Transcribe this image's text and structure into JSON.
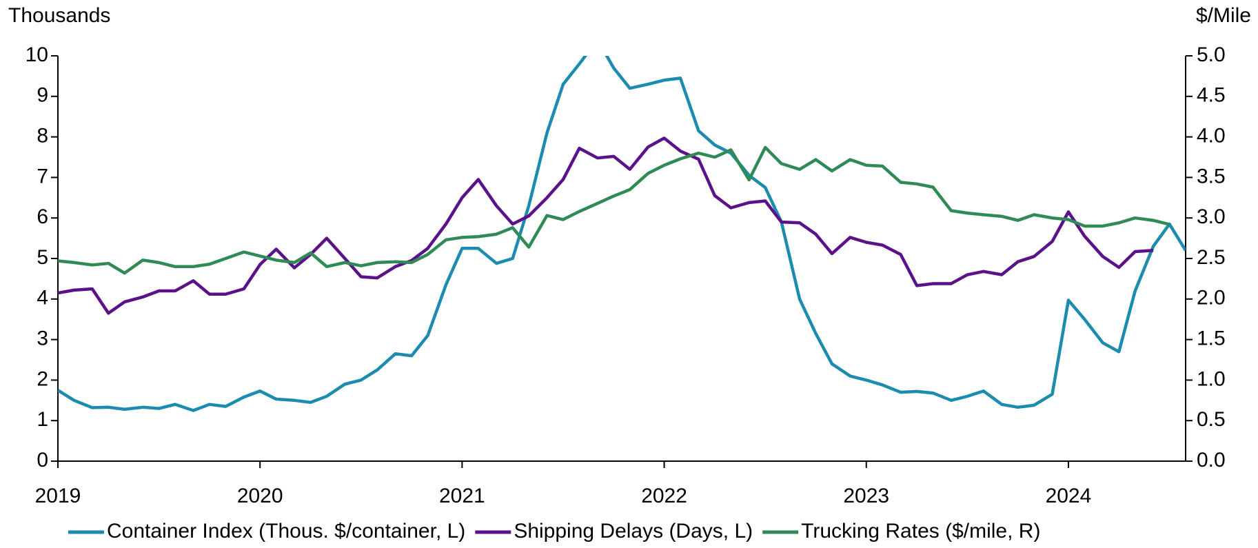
{
  "chart_data": {
    "type": "line",
    "y_label": "Thousands",
    "y2_label": "$/Mile",
    "x": [
      2019,
      2019.08,
      2019.17,
      2019.25,
      2019.33,
      2019.42,
      2019.5,
      2019.58,
      2019.67,
      2019.75,
      2019.83,
      2019.92,
      2020,
      2020.08,
      2020.17,
      2020.25,
      2020.33,
      2020.42,
      2020.5,
      2020.58,
      2020.67,
      2020.75,
      2020.83,
      2020.92,
      2021,
      2021.08,
      2021.17,
      2021.25,
      2021.33,
      2021.42,
      2021.5,
      2021.58,
      2021.67,
      2021.75,
      2021.83,
      2021.92,
      2022,
      2022.08,
      2022.17,
      2022.25,
      2022.33,
      2022.42,
      2022.5,
      2022.58,
      2022.67,
      2022.75,
      2022.83,
      2022.92,
      2023,
      2023.08,
      2023.17,
      2023.25,
      2023.33,
      2023.42,
      2023.5,
      2023.58,
      2023.67,
      2023.75,
      2023.83,
      2023.92,
      2024,
      2024.08,
      2024.17,
      2024.25,
      2024.33,
      2024.42,
      2024.5,
      2024.58
    ],
    "xlim": [
      2019,
      2024.58
    ],
    "xticks": [
      2019,
      2020,
      2021,
      2022,
      2023,
      2024
    ],
    "ylim": [
      0,
      10
    ],
    "yticks": [
      0,
      1,
      2,
      3,
      4,
      5,
      6,
      7,
      8,
      9,
      10
    ],
    "y2lim": [
      0,
      5
    ],
    "y2ticks": [
      {
        "value": 0,
        "label": "0.0"
      },
      0.5,
      {
        "value": 1,
        "label": "1.0"
      },
      1.5,
      {
        "value": 2,
        "label": "2.0"
      },
      2.5,
      {
        "value": 3,
        "label": "3.0"
      },
      3.5,
      {
        "value": 4,
        "label": "4.0"
      },
      4.5,
      {
        "value": 5,
        "label": "5.0"
      }
    ],
    "legend": "bottom",
    "series": [
      {
        "name": "Container Index (Thous. $/container, L)",
        "color": "#1b8bb0",
        "values": [
          1.75,
          1.5,
          1.32,
          1.33,
          1.28,
          1.33,
          1.3,
          1.4,
          1.25,
          1.4,
          1.35,
          1.58,
          1.73,
          1.53,
          1.5,
          1.45,
          1.6,
          1.9,
          2.0,
          2.25,
          2.65,
          2.6,
          3.1,
          4.35,
          5.25,
          5.25,
          4.88,
          5.0,
          6.3,
          8.1,
          9.3,
          9.8,
          10.4,
          9.7,
          9.2,
          9.3,
          9.4,
          9.45,
          8.15,
          7.8,
          7.6,
          7.05,
          6.75,
          5.9,
          4.0,
          3.15,
          2.4,
          2.1,
          2.0,
          1.88,
          1.7,
          1.72,
          1.68,
          1.5,
          1.6,
          1.73,
          1.4,
          1.33,
          1.38,
          1.65,
          3.97,
          3.5,
          2.92,
          2.7,
          4.2,
          5.3,
          5.85,
          5.2
        ]
      },
      {
        "name": "Shipping Delays (Days, L)",
        "color": "#5b118a",
        "values": [
          4.15,
          4.22,
          4.25,
          3.65,
          3.93,
          4.05,
          4.2,
          4.2,
          4.45,
          4.12,
          4.12,
          4.25,
          4.85,
          5.23,
          4.77,
          5.1,
          5.5,
          5.0,
          4.55,
          4.52,
          4.8,
          4.95,
          5.25,
          5.85,
          6.5,
          6.95,
          6.3,
          5.85,
          6.05,
          6.5,
          6.95,
          7.72,
          7.48,
          7.52,
          7.2,
          7.75,
          7.97,
          7.65,
          7.45,
          6.55,
          6.25,
          6.38,
          6.42,
          5.9,
          5.88,
          5.6,
          5.12,
          5.52,
          5.4,
          5.33,
          5.1,
          4.33,
          4.38,
          4.38,
          4.6,
          4.68,
          4.6,
          4.92,
          5.05,
          5.42,
          6.15,
          5.55,
          5.05,
          4.78,
          5.17,
          5.2,
          null,
          null
        ]
      },
      {
        "name": "Trucking Rates ($/mile, R)",
        "color": "#2f8a55",
        "axis": "y2",
        "values": [
          2.47,
          2.45,
          2.42,
          2.44,
          2.32,
          2.48,
          2.45,
          2.4,
          2.4,
          2.43,
          2.5,
          2.58,
          2.53,
          2.48,
          2.45,
          2.57,
          2.4,
          2.45,
          2.41,
          2.45,
          2.46,
          2.45,
          2.55,
          2.73,
          2.76,
          2.77,
          2.8,
          2.88,
          2.64,
          3.03,
          2.98,
          3.08,
          3.18,
          3.27,
          3.35,
          3.55,
          3.65,
          3.73,
          3.8,
          3.75,
          3.84,
          3.47,
          3.87,
          3.67,
          3.6,
          3.72,
          3.58,
          3.72,
          3.65,
          3.64,
          3.44,
          3.42,
          3.38,
          3.09,
          3.06,
          3.04,
          3.02,
          2.97,
          3.04,
          3.0,
          2.98,
          2.9,
          2.9,
          2.94,
          3.0,
          2.97,
          2.92,
          null
        ]
      }
    ]
  }
}
